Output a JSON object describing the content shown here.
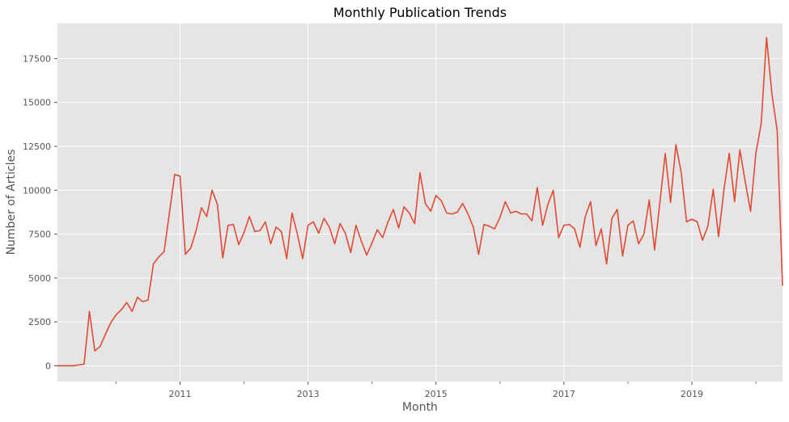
{
  "chart_data": {
    "type": "line",
    "title": "Monthly Publication Trends",
    "xlabel": "Month",
    "ylabel": "Number of Articles",
    "grid": true,
    "style": "ggplot",
    "colors": {
      "line": "#E24A33",
      "plot_bg": "#E5E5E5",
      "grid": "#FFFFFF"
    },
    "xlim": [
      "2009-02",
      "2020-06"
    ],
    "ylim": [
      -900,
      19500
    ],
    "x_ticks": [
      {
        "value": "2011-01",
        "label": "2011"
      },
      {
        "value": "2013-01",
        "label": "2013"
      },
      {
        "value": "2015-01",
        "label": "2015"
      },
      {
        "value": "2017-01",
        "label": "2017"
      },
      {
        "value": "2019-01",
        "label": "2019"
      }
    ],
    "x_minor_ticks": [
      "2010-01",
      "2012-01",
      "2014-01",
      "2016-01",
      "2018-01",
      "2020-01"
    ],
    "y_ticks": [
      0,
      2500,
      5000,
      7500,
      10000,
      12500,
      15000,
      17500
    ],
    "y_tick_labels": [
      "0",
      "2500",
      "5000",
      "7500",
      "10000",
      "12500",
      "15000",
      "17500"
    ],
    "series": [
      {
        "x": [
          "2009-02",
          "2009-03",
          "2009-04",
          "2009-05",
          "2009-06",
          "2009-07",
          "2009-08",
          "2009-09",
          "2009-10",
          "2009-11",
          "2009-12",
          "2010-01",
          "2010-02",
          "2010-03",
          "2010-04",
          "2010-05",
          "2010-06",
          "2010-07",
          "2010-08",
          "2010-09",
          "2010-10",
          "2010-11",
          "2010-12",
          "2011-01",
          "2011-02",
          "2011-03",
          "2011-04",
          "2011-05",
          "2011-06",
          "2011-07",
          "2011-08",
          "2011-09",
          "2011-10",
          "2011-11",
          "2011-12",
          "2012-01",
          "2012-02",
          "2012-03",
          "2012-04",
          "2012-05",
          "2012-06",
          "2012-07",
          "2012-08",
          "2012-09",
          "2012-10",
          "2012-11",
          "2012-12",
          "2013-01",
          "2013-02",
          "2013-03",
          "2013-04",
          "2013-05",
          "2013-06",
          "2013-07",
          "2013-08",
          "2013-09",
          "2013-10",
          "2013-11",
          "2013-12",
          "2014-01",
          "2014-02",
          "2014-03",
          "2014-04",
          "2014-05",
          "2014-06",
          "2014-07",
          "2014-08",
          "2014-09",
          "2014-10",
          "2014-11",
          "2014-12",
          "2015-01",
          "2015-02",
          "2015-03",
          "2015-04",
          "2015-05",
          "2015-06",
          "2015-07",
          "2015-08",
          "2015-09",
          "2015-10",
          "2015-11",
          "2015-12",
          "2016-01",
          "2016-02",
          "2016-03",
          "2016-04",
          "2016-05",
          "2016-06",
          "2016-07",
          "2016-08",
          "2016-09",
          "2016-10",
          "2016-11",
          "2016-12",
          "2017-01",
          "2017-02",
          "2017-03",
          "2017-04",
          "2017-05",
          "2017-06",
          "2017-07",
          "2017-08",
          "2017-09",
          "2017-10",
          "2017-11",
          "2017-12",
          "2018-01",
          "2018-02",
          "2018-03",
          "2018-04",
          "2018-05",
          "2018-06",
          "2018-07",
          "2018-08",
          "2018-09",
          "2018-10",
          "2018-11",
          "2018-12",
          "2019-01",
          "2019-02",
          "2019-03",
          "2019-04",
          "2019-05",
          "2019-06",
          "2019-07",
          "2019-08",
          "2019-09",
          "2019-10",
          "2019-11",
          "2019-12",
          "2020-01",
          "2020-02",
          "2020-03",
          "2020-04",
          "2020-05",
          "2020-06"
        ],
        "values": [
          0,
          0,
          0,
          0,
          50,
          100,
          3100,
          850,
          1100,
          1800,
          2450,
          2900,
          3200,
          3600,
          3100,
          3900,
          3650,
          3750,
          5800,
          6200,
          6500,
          8700,
          10900,
          10800,
          6350,
          6700,
          7700,
          9000,
          8500,
          10000,
          9200,
          6150,
          8000,
          8050,
          6900,
          7600,
          8500,
          7650,
          7700,
          8200,
          6950,
          7900,
          7650,
          6100,
          8700,
          7500,
          6100,
          8000,
          8200,
          7550,
          8400,
          7900,
          6950,
          8100,
          7550,
          6450,
          8000,
          7100,
          6300,
          7000,
          7750,
          7300,
          8200,
          8900,
          7850,
          9050,
          8700,
          8100,
          11000,
          9250,
          8800,
          9700,
          9400,
          8700,
          8650,
          8750,
          9250,
          8650,
          7900,
          6350,
          8050,
          7950,
          7800,
          8450,
          9350,
          8700,
          8800,
          8650,
          8650,
          8250,
          10150,
          8000,
          9200,
          10000,
          7300,
          8000,
          8050,
          7800,
          6750,
          8500,
          9350,
          6850,
          7800,
          5800,
          8400,
          8900,
          6250,
          8000,
          8250,
          6950,
          7500,
          9450,
          6600,
          9300,
          12100,
          9300,
          12600,
          11000,
          8200,
          8350,
          8200,
          7150,
          7950,
          10050,
          7350,
          10000,
          12100,
          9350,
          12300,
          10500,
          8800,
          12100,
          13800,
          18700,
          15500,
          13400,
          4550
        ]
      }
    ]
  }
}
